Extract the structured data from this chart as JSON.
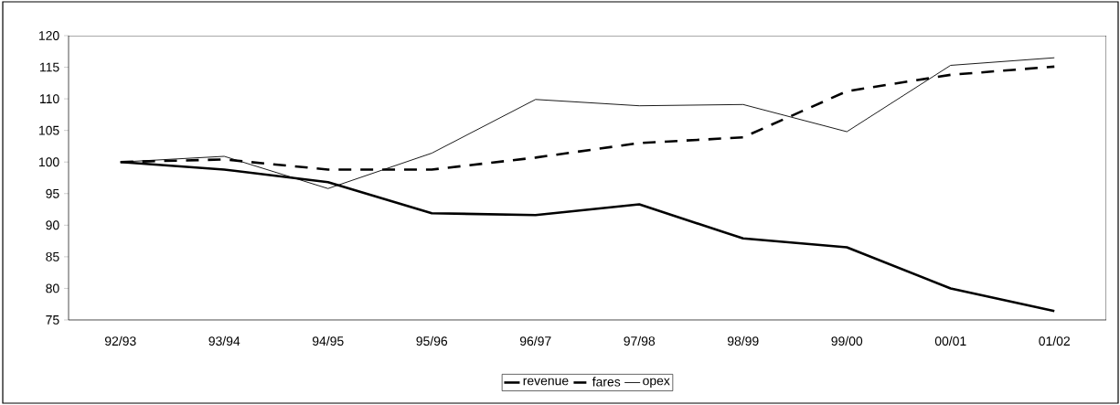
{
  "chart_data": {
    "type": "line",
    "categories": [
      "92/93",
      "93/94",
      "94/95",
      "95/96",
      "96/97",
      "97/98",
      "98/99",
      "99/00",
      "00/01",
      "01/02"
    ],
    "series": [
      {
        "name": "revenue",
        "color": "#000000",
        "line_style": "solid",
        "values": [
          100,
          98.8,
          96.8,
          91.9,
          91.6,
          93.3,
          87.9,
          86.5,
          80,
          76.4
        ]
      },
      {
        "name": "fares",
        "color": "#000000",
        "line_style": "dashed",
        "values": [
          100,
          100.4,
          98.8,
          98.8,
          100.7,
          103,
          103.9,
          111.2,
          113.8,
          115.1
        ]
      },
      {
        "name": "opex",
        "color": "#000000",
        "line_style": "solid",
        "values": [
          100,
          100.9,
          95.8,
          101.4,
          109.9,
          108.9,
          109.1,
          104.8,
          115.3,
          116.5
        ]
      }
    ],
    "ylim": [
      75,
      120
    ],
    "yticks": [
      75,
      80,
      85,
      90,
      95,
      100,
      105,
      110,
      115,
      120
    ],
    "grid": false,
    "legend": "bottom",
    "marker": "none"
  }
}
